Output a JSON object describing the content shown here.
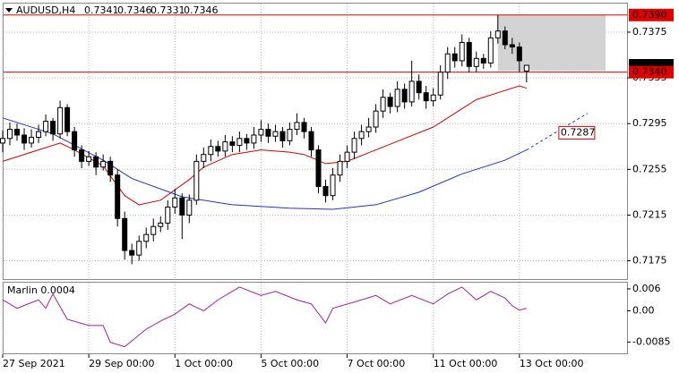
{
  "chart_data": [
    {
      "type": "candlestick",
      "title": "AUDUSD,H4",
      "xlim": [
        0,
        87
      ],
      "xticks": [
        {
          "value": 0,
          "label": "27 Sep 2021"
        },
        {
          "value": 12,
          "label": "29 Sep 00:00"
        },
        {
          "value": 24,
          "label": "1 Oct 00:00"
        },
        {
          "value": 36,
          "label": "5 Oct 00:00"
        },
        {
          "value": 48,
          "label": "7 Oct 00:00"
        },
        {
          "value": 60,
          "label": "11 Oct 00:00"
        },
        {
          "value": 72,
          "label": "13 Oct 00:00"
        }
      ],
      "ylim": [
        0.7159,
        0.74
      ],
      "yticks": [
        0.7175,
        0.7215,
        0.7255,
        0.7295,
        0.7335,
        0.7375
      ],
      "grid": true,
      "candles": {
        "open": [
          0.7278,
          0.7282,
          0.729,
          0.7285,
          0.7278,
          0.7283,
          0.7288,
          0.7297,
          0.7286,
          0.7309,
          0.7288,
          0.7272,
          0.7262,
          0.7266,
          0.7257,
          0.7262,
          0.725,
          0.7212,
          0.7184,
          0.718,
          0.7192,
          0.7198,
          0.7205,
          0.7208,
          0.7222,
          0.723,
          0.7215,
          0.7228,
          0.7262,
          0.7268,
          0.7275,
          0.7271,
          0.7279,
          0.7276,
          0.7282,
          0.7278,
          0.7285,
          0.729,
          0.7284,
          0.7288,
          0.728,
          0.729,
          0.7296,
          0.7288,
          0.7272,
          0.724,
          0.7232,
          0.725,
          0.7262,
          0.727,
          0.7282,
          0.7288,
          0.7292,
          0.7306,
          0.7318,
          0.731,
          0.7325,
          0.7314,
          0.7332,
          0.7322,
          0.7315,
          0.732,
          0.734,
          0.7356,
          0.735,
          0.7366,
          0.7345,
          0.7352,
          0.7348,
          0.737,
          0.7376,
          0.7364,
          0.7362,
          0.7341
        ],
        "high": [
          0.7289,
          0.7296,
          0.7295,
          0.7291,
          0.729,
          0.7294,
          0.7303,
          0.73,
          0.7315,
          0.7312,
          0.7292,
          0.7276,
          0.7271,
          0.727,
          0.7268,
          0.7266,
          0.7255,
          0.7218,
          0.719,
          0.7197,
          0.7204,
          0.7212,
          0.7214,
          0.7228,
          0.7238,
          0.7234,
          0.7233,
          0.7268,
          0.7274,
          0.7281,
          0.728,
          0.7285,
          0.7284,
          0.7288,
          0.7286,
          0.7292,
          0.7298,
          0.7295,
          0.7294,
          0.7292,
          0.7296,
          0.7304,
          0.73,
          0.7292,
          0.7276,
          0.7246,
          0.7256,
          0.7268,
          0.7276,
          0.7288,
          0.7294,
          0.73,
          0.7312,
          0.7325,
          0.7322,
          0.7332,
          0.733,
          0.735,
          0.7338,
          0.7328,
          0.7326,
          0.7346,
          0.7362,
          0.7362,
          0.7373,
          0.737,
          0.7358,
          0.7356,
          0.7376,
          0.739,
          0.738,
          0.737,
          0.7366,
          0.7346
        ],
        "low": [
          0.727,
          0.7276,
          0.728,
          0.7272,
          0.7274,
          0.7278,
          0.7284,
          0.728,
          0.7282,
          0.7284,
          0.7266,
          0.7256,
          0.7258,
          0.725,
          0.7254,
          0.7244,
          0.7205,
          0.7176,
          0.7172,
          0.7175,
          0.7186,
          0.7192,
          0.72,
          0.7202,
          0.7216,
          0.7194,
          0.7208,
          0.7224,
          0.7256,
          0.7262,
          0.7266,
          0.7266,
          0.727,
          0.727,
          0.7272,
          0.7273,
          0.7279,
          0.7278,
          0.7279,
          0.7274,
          0.7276,
          0.7285,
          0.7282,
          0.7266,
          0.7234,
          0.7226,
          0.7228,
          0.7244,
          0.7256,
          0.7264,
          0.7276,
          0.7283,
          0.7287,
          0.73,
          0.7304,
          0.7305,
          0.7308,
          0.731,
          0.7316,
          0.7308,
          0.731,
          0.7316,
          0.7334,
          0.7344,
          0.7345,
          0.734,
          0.734,
          0.7343,
          0.7344,
          0.7365,
          0.736,
          0.7356,
          0.734,
          0.7331
        ],
        "close": [
          0.7282,
          0.729,
          0.7285,
          0.7278,
          0.7283,
          0.7288,
          0.7297,
          0.7286,
          0.7309,
          0.7288,
          0.7272,
          0.7262,
          0.7266,
          0.7257,
          0.7262,
          0.725,
          0.7212,
          0.7184,
          0.718,
          0.7192,
          0.7198,
          0.7205,
          0.7208,
          0.7222,
          0.723,
          0.7215,
          0.7228,
          0.7262,
          0.7268,
          0.7275,
          0.7271,
          0.7279,
          0.7276,
          0.7282,
          0.7278,
          0.7285,
          0.729,
          0.7284,
          0.7288,
          0.728,
          0.729,
          0.7296,
          0.7288,
          0.7272,
          0.724,
          0.7232,
          0.725,
          0.7262,
          0.727,
          0.7282,
          0.7288,
          0.7292,
          0.7306,
          0.7318,
          0.731,
          0.7325,
          0.7314,
          0.7332,
          0.7322,
          0.7315,
          0.732,
          0.734,
          0.7356,
          0.735,
          0.7366,
          0.7345,
          0.7352,
          0.7348,
          0.737,
          0.7376,
          0.7364,
          0.7362,
          0.735,
          0.7346
        ]
      },
      "series": [
        {
          "color": "#d40000",
          "x": [
            0,
            4,
            8,
            10,
            14,
            17,
            19,
            22,
            26,
            28,
            32,
            36,
            40,
            42,
            45,
            48,
            52,
            56,
            60,
            63,
            66,
            69,
            72,
            73
          ],
          "values": [
            0.7262,
            0.727,
            0.7278,
            0.7272,
            0.7258,
            0.7232,
            0.7224,
            0.7228,
            0.7246,
            0.7257,
            0.7268,
            0.7272,
            0.727,
            0.7268,
            0.726,
            0.7262,
            0.7272,
            0.7282,
            0.7292,
            0.7304,
            0.7316,
            0.7322,
            0.7328,
            0.7326
          ]
        },
        {
          "color": "#1f35c8",
          "x": [
            0,
            7,
            14,
            18,
            25,
            32,
            40,
            46,
            52,
            58,
            64,
            70,
            73
          ],
          "values": [
            0.73,
            0.7286,
            0.7263,
            0.7247,
            0.7231,
            0.7224,
            0.7221,
            0.722,
            0.7224,
            0.7235,
            0.7251,
            0.7263,
            0.7272
          ]
        },
        {
          "color": "#1f35c8",
          "style": "dashed",
          "x": [
            73,
            81.5
          ],
          "values": [
            0.7272,
            0.7304
          ]
        }
      ],
      "zone": {
        "x": [
          69,
          84
        ],
        "y": [
          0.7341,
          0.739
        ],
        "color": "#d3d3d3"
      },
      "levels": [
        {
          "value": 0.739,
          "label": "0.7390"
        },
        {
          "value": 0.734,
          "label": "0.7340"
        }
      ],
      "level_color": "#e00000",
      "current_price": 0.7346,
      "annotation": {
        "x": 77,
        "value": 0.7287
      }
    },
    {
      "type": "line",
      "title": "Marlin 0.0004",
      "color": "#a020a0",
      "x": [
        0,
        2,
        5,
        6,
        7,
        9,
        12,
        14,
        15,
        17,
        20,
        22,
        24,
        26,
        28,
        30,
        33,
        36,
        38,
        41,
        43,
        45,
        46,
        50,
        52,
        54,
        57,
        60,
        62,
        64,
        66,
        68,
        70,
        71,
        72,
        73
      ],
      "values": [
        0.003,
        0.0007,
        0.003,
        0.0007,
        0.0046,
        -0.0023,
        -0.004,
        -0.004,
        -0.0086,
        -0.0098,
        -0.005,
        -0.0028,
        -0.0009,
        0.0019,
        0,
        0.003,
        0.0065,
        0.0042,
        0.0053,
        0.003,
        0.0019,
        -0.0033,
        0.0007,
        0.003,
        0.0042,
        0.0019,
        0.0042,
        0.0019,
        0.0046,
        0.0065,
        0.003,
        0.0053,
        0.0035,
        0.0014,
        0.0002,
        0.0007
      ],
      "ylim": [
        -0.0116,
        0.0077
      ],
      "yticks": [
        0.006,
        {
          "value": 0,
          "label": "0.00"
        },
        -0.0085
      ]
    }
  ]
}
